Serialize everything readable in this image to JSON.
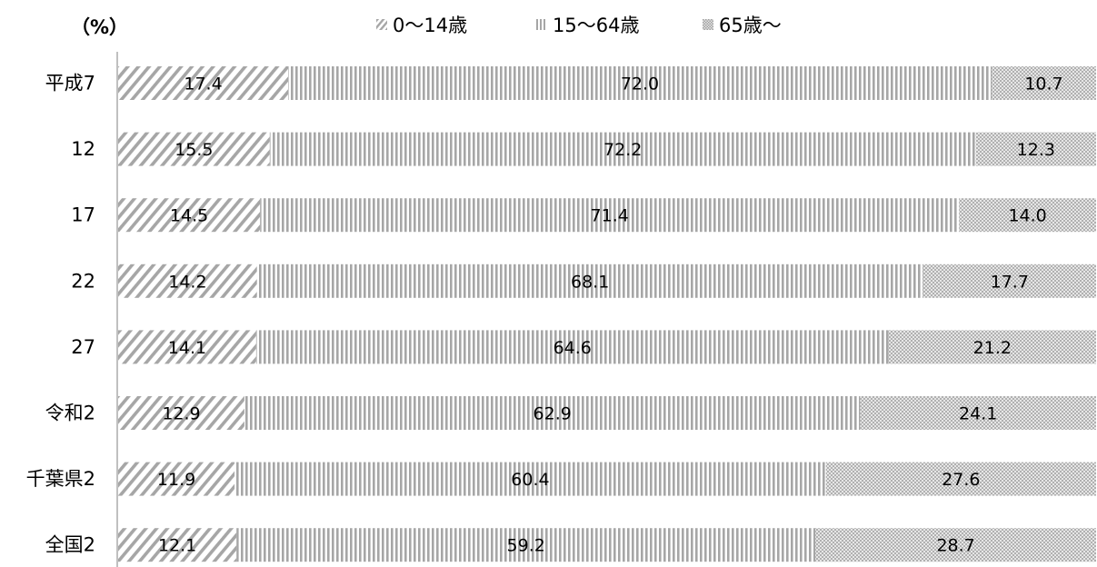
{
  "chart_data": {
    "type": "bar",
    "orientation": "horizontal",
    "stacked": true,
    "unit_label": "（%）",
    "categories": [
      "平成7",
      "12",
      "17",
      "22",
      "27",
      "令和2",
      "千葉県2",
      "全国2"
    ],
    "series": [
      {
        "name": "0～14歳",
        "values": [
          17.4,
          15.5,
          14.5,
          14.2,
          14.1,
          12.9,
          11.9,
          12.1
        ],
        "pattern": "diagonal",
        "color": "#a6a6a6"
      },
      {
        "name": "15～64歳",
        "values": [
          72.0,
          72.2,
          71.4,
          68.1,
          64.6,
          62.9,
          60.4,
          59.2
        ],
        "pattern": "vertical",
        "color": "#a6a6a6"
      },
      {
        "name": "65歳～",
        "values": [
          10.7,
          12.3,
          14.0,
          17.7,
          21.2,
          24.1,
          27.6,
          28.7
        ],
        "pattern": "crosshatch",
        "color": "#bfbfbf"
      }
    ],
    "data_labels": [
      [
        "17.4",
        "15.5",
        "14.5",
        "14.2",
        "14.1",
        "12.9",
        "11.9",
        "12.1"
      ],
      [
        "72.0",
        "72.2",
        "71.4",
        "68.1",
        "64.6",
        "62.9",
        "60.4",
        "59.2"
      ],
      [
        "10.7",
        "12.3",
        "14.0",
        "17.7",
        "21.2",
        "24.1",
        "27.6",
        "28.7"
      ]
    ],
    "xlim": [
      0,
      100
    ],
    "grid": false,
    "legend_position": "top"
  }
}
